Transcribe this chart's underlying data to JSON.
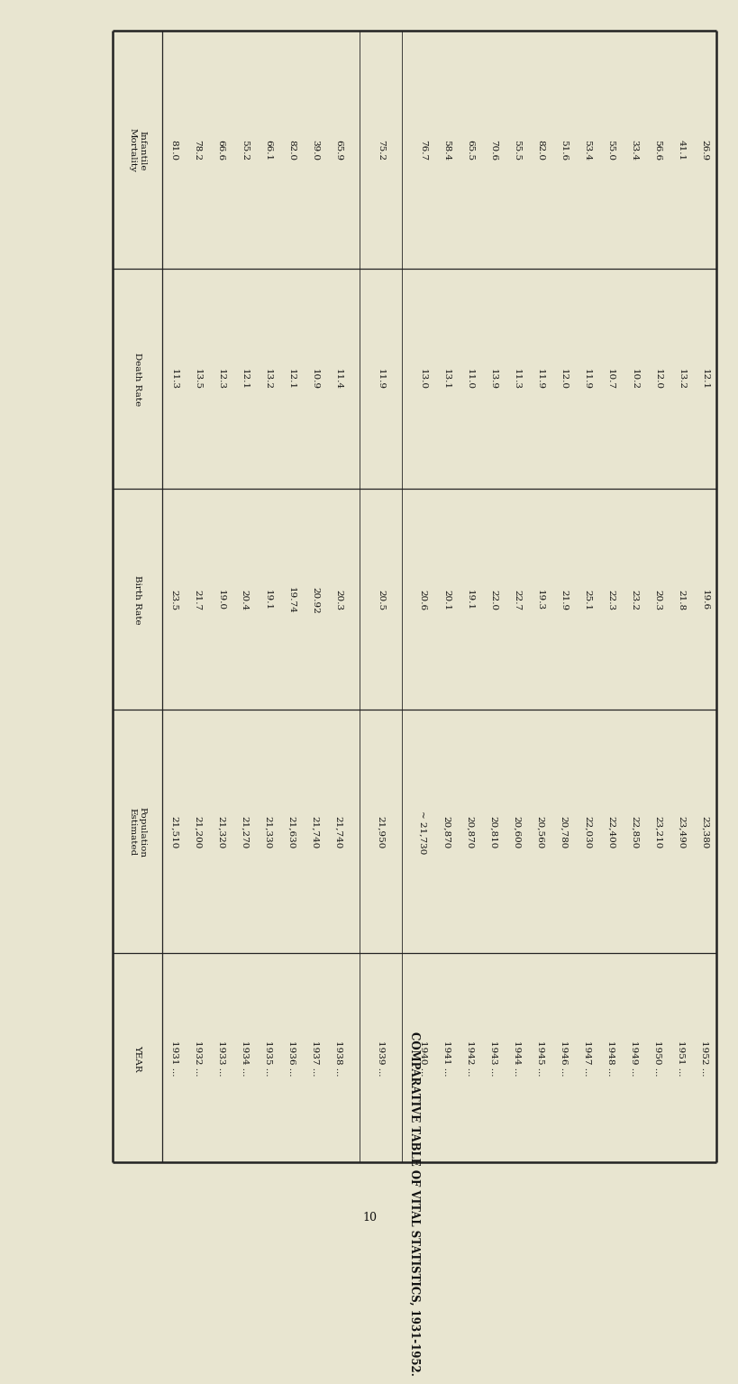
{
  "title": "COMPARATIVE TABLE OF VITAL STATISTICS, 1931-1952.",
  "col_headers": [
    "YEAR",
    "Population\nEstimated",
    "Birth Rate",
    "Death Rate",
    "Infantile\nMortality"
  ],
  "rows": [
    [
      "1931 ...",
      "21,510",
      "23.5",
      "11.3",
      "81.0"
    ],
    [
      "1932 ...",
      "21,200",
      "21.7",
      "13.5",
      "78.2"
    ],
    [
      "1933 ...",
      "21,320",
      "19.0",
      "12.3",
      "66.6"
    ],
    [
      "1934 ...",
      "21,270",
      "20.4",
      "12.1",
      "55.2"
    ],
    [
      "1935 ...",
      "21,330",
      "19.1",
      "13.2",
      "66.1"
    ],
    [
      "1936 ...",
      "21,630",
      "19.74",
      "12.1",
      "82.0"
    ],
    [
      "1937 ...",
      "21,740",
      "20.92",
      "10.9",
      "39.0"
    ],
    [
      "1938 ...",
      "21,740",
      "20.3",
      "11.4",
      "65.9"
    ],
    [
      "1939 ...",
      "21,950",
      "20.5",
      "11.9",
      "75.2"
    ],
    [
      "1940 ...",
      "~ 21,730",
      "20.6",
      "13.0",
      "76.7"
    ],
    [
      "1941 ...",
      "20,870",
      "20.1",
      "13.1",
      "58.4"
    ],
    [
      "1942 ...",
      "20,870",
      "19.1",
      "11.0",
      "65.5"
    ],
    [
      "1943 ...",
      "20,810",
      "22.0",
      "13.9",
      "70.6"
    ],
    [
      "1944 ...",
      "20,600",
      "22.7",
      "11.3",
      "55.5"
    ],
    [
      "1945 ...",
      "20,560",
      "19.3",
      "11.9",
      "82.0"
    ],
    [
      "1946 ...",
      "20,780",
      "21.9",
      "12.0",
      "51.6"
    ],
    [
      "1947 ...",
      "22,030",
      "25.1",
      "11.9",
      "53.4"
    ],
    [
      "1948 ...",
      "22,400",
      "22.3",
      "10.7",
      "55.0"
    ],
    [
      "1949 ...",
      "22,850",
      "23.2",
      "10.2",
      "33.4"
    ],
    [
      "1950 ...",
      "23,210",
      "20.3",
      "12.0",
      "56.6"
    ],
    [
      "1951 ...",
      "23,490",
      "21.8",
      "13.2",
      "41.1"
    ],
    [
      "1952 ...",
      "23,380",
      "19.6",
      "12.1",
      "26.9"
    ]
  ],
  "gap_before_1939": true,
  "gap_before_1940": true,
  "tilde_row": 9,
  "bg_color": "#e8e5d0",
  "text_color": "#111111",
  "line_color": "#222222"
}
